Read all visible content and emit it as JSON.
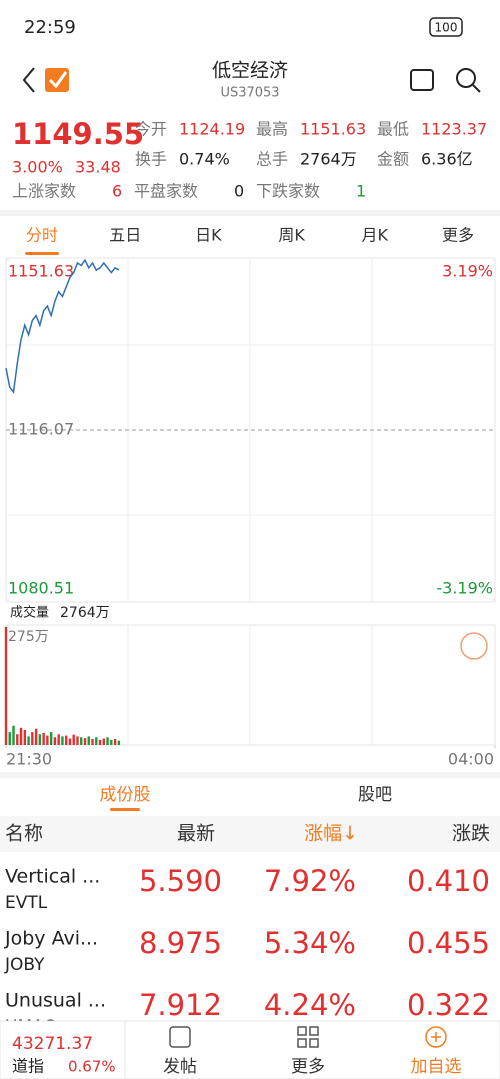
{
  "status_bar": {
    "time": "22:59",
    "battery": "100"
  },
  "header": {
    "title": "低空经济",
    "code": "US37053"
  },
  "quote": {
    "price": "1149.55",
    "change_pct": "3.00%",
    "change": "33.48",
    "fields": [
      {
        "label": "今开",
        "value": "1124.19"
      },
      {
        "label": "最高",
        "value": "1151.63"
      },
      {
        "label": "最低",
        "value": "1123.37"
      },
      {
        "label": "换手",
        "value": "0.74%"
      },
      {
        "label": "总手",
        "value": "2764万"
      },
      {
        "label": "金额",
        "value": "6.36亿"
      }
    ],
    "breadth": [
      {
        "label": "上涨家数",
        "value": "6"
      },
      {
        "label": "平盘家数",
        "value": "0"
      },
      {
        "label": "下跌家数",
        "value": "1"
      }
    ]
  },
  "tabs": [
    "分时",
    "五日",
    "日K",
    "周K",
    "月K",
    "更多"
  ],
  "chart_data": [
    {
      "type": "line",
      "xlim": [
        0,
        390
      ],
      "ylim": [
        1080.51,
        1151.63
      ],
      "yticks": [
        1080.51,
        1116.07,
        1151.63
      ],
      "y2lim": [
        -3.19,
        3.19
      ],
      "y2ticks": [
        {
          "value": -3.19,
          "label": "-3.19%"
        },
        {
          "value": 3.19,
          "label": "3.19%"
        }
      ],
      "x": [
        0,
        3,
        6,
        9,
        12,
        15,
        18,
        21,
        24,
        27,
        30,
        33,
        36,
        39,
        42,
        45,
        48,
        51,
        54,
        57,
        60,
        63,
        66,
        69,
        72,
        75,
        78,
        81,
        84,
        87,
        90
      ],
      "series": [
        {
          "color": "#2f6fb5",
          "values": [
            1129,
            1125,
            1124,
            1130,
            1135,
            1138,
            1136,
            1139,
            1140,
            1138,
            1141,
            1142,
            1140,
            1143,
            1145,
            1144,
            1146,
            1148,
            1149,
            1151,
            1150.5,
            1151.6,
            1150,
            1151,
            1149.5,
            1150,
            1151,
            1150,
            1149,
            1150,
            1149.55
          ]
        }
      ]
    },
    {
      "type": "bar",
      "title": "成交量",
      "total": "2764万",
      "xlim": [
        0,
        390
      ],
      "xticks": [
        {
          "value": 0,
          "label": "21:30"
        },
        {
          "value": 390,
          "label": "04:00"
        }
      ],
      "ylim": [
        0,
        275
      ],
      "yticks": [
        {
          "value": 275,
          "label": "275万"
        }
      ],
      "x": [
        0,
        3,
        6,
        9,
        12,
        15,
        18,
        21,
        24,
        27,
        30,
        33,
        36,
        39,
        42,
        45,
        48,
        51,
        54,
        57,
        60,
        63,
        66,
        69,
        72,
        75,
        78,
        81,
        84,
        87,
        90
      ],
      "values": [
        275,
        30,
        45,
        25,
        40,
        35,
        20,
        30,
        38,
        25,
        28,
        22,
        30,
        18,
        25,
        20,
        22,
        15,
        24,
        20,
        18,
        16,
        20,
        14,
        18,
        12,
        15,
        18,
        12,
        14,
        10
      ]
    }
  ],
  "sub_tabs": [
    "成份股",
    "股吧"
  ],
  "table": {
    "header": [
      "名称",
      "最新",
      "涨幅↓",
      "涨跌"
    ],
    "rows": [
      [
        "Vertical ...",
        "EVTL",
        "5.590",
        "7.92%",
        "0.410"
      ],
      [
        "Joby Avi...",
        "JOBY",
        "8.975",
        "5.34%",
        "0.455"
      ],
      [
        "Unusual ...",
        "UMAC",
        "7.912",
        "4.24%",
        "0.322"
      ]
    ]
  },
  "bottom_bar": {
    "index_value": "43271.37",
    "index_name": "道指",
    "index_pct": "0.67%",
    "actions": [
      "发帖",
      "更多",
      "加自选"
    ]
  }
}
